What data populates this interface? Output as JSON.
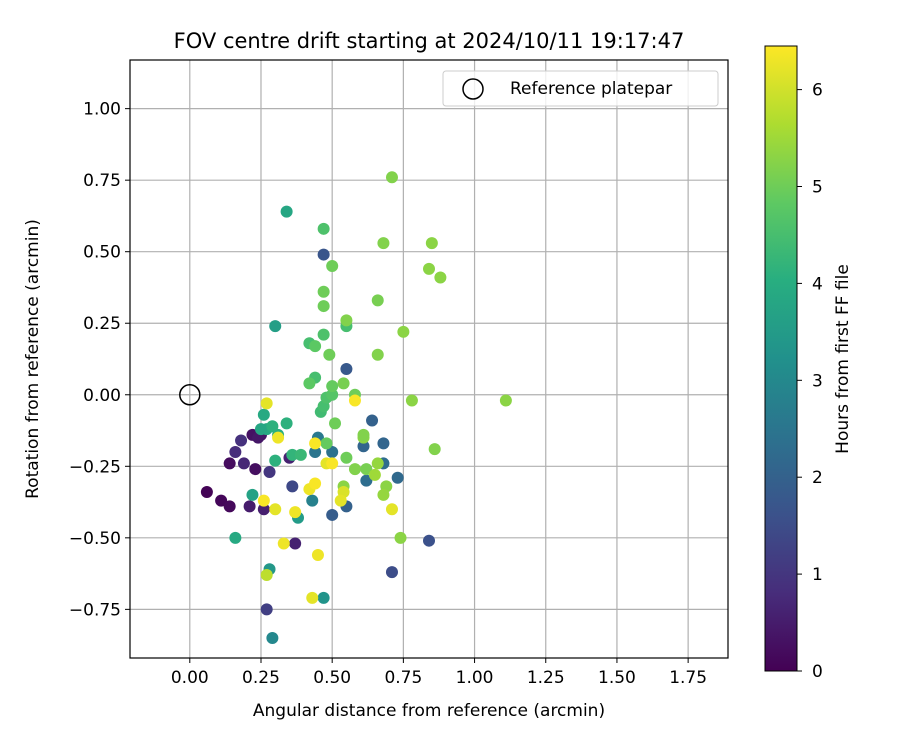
{
  "chart_data": {
    "type": "scatter",
    "title": "FOV centre drift starting at 2024/10/11 19:17:47",
    "xlabel": "Angular distance from reference (arcmin)",
    "ylabel": "Rotation from reference (arcmin)",
    "xlim": [
      -0.21,
      1.89
    ],
    "ylim": [
      -0.92,
      1.17
    ],
    "xticks": [
      "0.00",
      "0.25",
      "0.50",
      "0.75",
      "1.00",
      "1.25",
      "1.50",
      "1.75"
    ],
    "yticks": [
      "−0.75",
      "−0.50",
      "−0.25",
      "0.00",
      "0.25",
      "0.50",
      "0.75",
      "1.00"
    ],
    "xtick_values": [
      0,
      0.25,
      0.5,
      0.75,
      1.0,
      1.25,
      1.5,
      1.75
    ],
    "ytick_values": [
      -0.75,
      -0.5,
      -0.25,
      0,
      0.25,
      0.5,
      0.75,
      1.0
    ],
    "grid": true,
    "legend": {
      "position": "top-right",
      "entries": [
        "Reference platepar"
      ]
    },
    "reference_point": {
      "x": 0,
      "y": 0,
      "marker": "open-circle"
    },
    "colorbar": {
      "label": "Hours from first FF file",
      "colormap": "viridis",
      "range": [
        0,
        6.45
      ],
      "ticks": [
        "0",
        "1",
        "2",
        "3",
        "4",
        "5",
        "6"
      ],
      "tick_values": [
        0,
        1,
        2,
        3,
        4,
        5,
        6
      ]
    },
    "points": [
      {
        "x": 0.06,
        "y": -0.34,
        "c": 0.05
      },
      {
        "x": 0.11,
        "y": -0.37,
        "c": 0.1
      },
      {
        "x": 0.14,
        "y": -0.39,
        "c": 0.15
      },
      {
        "x": 0.14,
        "y": -0.24,
        "c": 0.2
      },
      {
        "x": 0.23,
        "y": -0.26,
        "c": 0.25
      },
      {
        "x": 0.22,
        "y": -0.14,
        "c": 0.3
      },
      {
        "x": 0.25,
        "y": -0.14,
        "c": 0.35
      },
      {
        "x": 0.24,
        "y": -0.15,
        "c": 0.4
      },
      {
        "x": 0.21,
        "y": -0.39,
        "c": 0.5
      },
      {
        "x": 0.26,
        "y": -0.4,
        "c": 0.55
      },
      {
        "x": 0.37,
        "y": -0.52,
        "c": 0.6
      },
      {
        "x": 0.35,
        "y": -0.22,
        "c": 0.6
      },
      {
        "x": 0.19,
        "y": -0.24,
        "c": 0.7
      },
      {
        "x": 0.16,
        "y": -0.2,
        "c": 0.8
      },
      {
        "x": 0.18,
        "y": -0.16,
        "c": 0.9
      },
      {
        "x": 0.28,
        "y": -0.27,
        "c": 1.0
      },
      {
        "x": 0.27,
        "y": -0.75,
        "c": 1.2
      },
      {
        "x": 0.36,
        "y": -0.32,
        "c": 1.4
      },
      {
        "x": 0.71,
        "y": -0.62,
        "c": 1.5
      },
      {
        "x": 0.84,
        "y": -0.51,
        "c": 1.6
      },
      {
        "x": 0.47,
        "y": 0.49,
        "c": 1.7
      },
      {
        "x": 0.55,
        "y": 0.09,
        "c": 1.8
      },
      {
        "x": 0.5,
        "y": -0.42,
        "c": 1.9
      },
      {
        "x": 0.55,
        "y": -0.39,
        "c": 2.0
      },
      {
        "x": 0.64,
        "y": -0.09,
        "c": 2.0
      },
      {
        "x": 0.61,
        "y": -0.18,
        "c": 2.1
      },
      {
        "x": 0.68,
        "y": -0.17,
        "c": 2.1
      },
      {
        "x": 0.73,
        "y": -0.29,
        "c": 2.2
      },
      {
        "x": 0.68,
        "y": -0.24,
        "c": 2.3
      },
      {
        "x": 0.62,
        "y": -0.3,
        "c": 2.3
      },
      {
        "x": 0.5,
        "y": -0.2,
        "c": 2.4
      },
      {
        "x": 0.44,
        "y": -0.2,
        "c": 2.5
      },
      {
        "x": 0.45,
        "y": -0.15,
        "c": 2.6
      },
      {
        "x": 0.43,
        "y": -0.37,
        "c": 2.8
      },
      {
        "x": 0.29,
        "y": -0.85,
        "c": 3.0
      },
      {
        "x": 0.47,
        "y": -0.71,
        "c": 3.3
      },
      {
        "x": 0.28,
        "y": -0.61,
        "c": 3.4
      },
      {
        "x": 0.38,
        "y": -0.43,
        "c": 3.5
      },
      {
        "x": 0.3,
        "y": 0.24,
        "c": 3.6
      },
      {
        "x": 0.34,
        "y": 0.64,
        "c": 3.8
      },
      {
        "x": 0.27,
        "y": -0.12,
        "c": 3.9
      },
      {
        "x": 0.25,
        "y": -0.12,
        "c": 3.8
      },
      {
        "x": 0.26,
        "y": -0.07,
        "c": 3.9
      },
      {
        "x": 0.31,
        "y": -0.14,
        "c": 4.0
      },
      {
        "x": 0.29,
        "y": -0.11,
        "c": 4.1
      },
      {
        "x": 0.22,
        "y": -0.35,
        "c": 3.7
      },
      {
        "x": 0.16,
        "y": -0.5,
        "c": 3.9
      },
      {
        "x": 0.3,
        "y": -0.23,
        "c": 4.1
      },
      {
        "x": 0.34,
        "y": -0.1,
        "c": 4.1
      },
      {
        "x": 0.36,
        "y": -0.21,
        "c": 4.2
      },
      {
        "x": 0.39,
        "y": -0.21,
        "c": 4.3
      },
      {
        "x": 0.46,
        "y": -0.06,
        "c": 4.4
      },
      {
        "x": 0.47,
        "y": -0.04,
        "c": 4.5
      },
      {
        "x": 0.48,
        "y": -0.01,
        "c": 4.6
      },
      {
        "x": 0.5,
        "y": 0.0,
        "c": 4.7
      },
      {
        "x": 0.44,
        "y": 0.06,
        "c": 4.5
      },
      {
        "x": 0.42,
        "y": 0.04,
        "c": 4.8
      },
      {
        "x": 0.42,
        "y": 0.18,
        "c": 4.5
      },
      {
        "x": 0.44,
        "y": 0.17,
        "c": 4.8
      },
      {
        "x": 0.47,
        "y": 0.21,
        "c": 4.6
      },
      {
        "x": 0.47,
        "y": 0.58,
        "c": 4.6
      },
      {
        "x": 0.55,
        "y": 0.24,
        "c": 4.5
      },
      {
        "x": 0.47,
        "y": 0.31,
        "c": 5.0
      },
      {
        "x": 0.47,
        "y": 0.36,
        "c": 5.0
      },
      {
        "x": 0.5,
        "y": 0.45,
        "c": 5.0
      },
      {
        "x": 0.49,
        "y": 0.14,
        "c": 5.0
      },
      {
        "x": 0.5,
        "y": 0.03,
        "c": 4.9
      },
      {
        "x": 0.54,
        "y": 0.04,
        "c": 5.1
      },
      {
        "x": 0.55,
        "y": 0.26,
        "c": 5.2
      },
      {
        "x": 0.58,
        "y": 0.0,
        "c": 5.0
      },
      {
        "x": 0.51,
        "y": -0.1,
        "c": 5.0
      },
      {
        "x": 0.48,
        "y": -0.17,
        "c": 4.9
      },
      {
        "x": 0.55,
        "y": -0.22,
        "c": 5.0
      },
      {
        "x": 0.54,
        "y": -0.32,
        "c": 5.3
      },
      {
        "x": 0.58,
        "y": -0.26,
        "c": 5.2
      },
      {
        "x": 0.61,
        "y": -0.15,
        "c": 5.3
      },
      {
        "x": 0.61,
        "y": -0.14,
        "c": 5.2
      },
      {
        "x": 0.62,
        "y": -0.26,
        "c": 5.1
      },
      {
        "x": 0.66,
        "y": -0.24,
        "c": 5.4
      },
      {
        "x": 0.65,
        "y": -0.28,
        "c": 5.5
      },
      {
        "x": 0.69,
        "y": -0.32,
        "c": 5.3
      },
      {
        "x": 0.68,
        "y": -0.35,
        "c": 5.4
      },
      {
        "x": 0.74,
        "y": -0.5,
        "c": 5.3
      },
      {
        "x": 0.86,
        "y": -0.19,
        "c": 5.2
      },
      {
        "x": 0.78,
        "y": -0.02,
        "c": 5.3
      },
      {
        "x": 0.66,
        "y": 0.14,
        "c": 5.2
      },
      {
        "x": 0.75,
        "y": 0.22,
        "c": 5.3
      },
      {
        "x": 0.66,
        "y": 0.33,
        "c": 5.1
      },
      {
        "x": 0.68,
        "y": 0.53,
        "c": 5.2
      },
      {
        "x": 0.71,
        "y": 0.76,
        "c": 5.2
      },
      {
        "x": 0.85,
        "y": 0.53,
        "c": 5.3
      },
      {
        "x": 0.84,
        "y": 0.44,
        "c": 5.3
      },
      {
        "x": 0.88,
        "y": 0.41,
        "c": 5.3
      },
      {
        "x": 1.11,
        "y": -0.02,
        "c": 5.3
      },
      {
        "x": 0.27,
        "y": -0.63,
        "c": 5.8
      },
      {
        "x": 0.27,
        "y": -0.03,
        "c": 6.2
      },
      {
        "x": 0.31,
        "y": -0.15,
        "c": 6.3
      },
      {
        "x": 0.26,
        "y": -0.37,
        "c": 6.4
      },
      {
        "x": 0.3,
        "y": -0.4,
        "c": 6.2
      },
      {
        "x": 0.33,
        "y": -0.52,
        "c": 6.3
      },
      {
        "x": 0.37,
        "y": -0.41,
        "c": 6.3
      },
      {
        "x": 0.42,
        "y": -0.33,
        "c": 6.3
      },
      {
        "x": 0.44,
        "y": -0.31,
        "c": 6.4
      },
      {
        "x": 0.43,
        "y": -0.71,
        "c": 6.2
      },
      {
        "x": 0.45,
        "y": -0.56,
        "c": 6.3
      },
      {
        "x": 0.44,
        "y": -0.17,
        "c": 6.4
      },
      {
        "x": 0.48,
        "y": -0.24,
        "c": 6.2
      },
      {
        "x": 0.5,
        "y": -0.24,
        "c": 6.4
      },
      {
        "x": 0.54,
        "y": -0.34,
        "c": 6.1
      },
      {
        "x": 0.53,
        "y": -0.37,
        "c": 6.2
      },
      {
        "x": 0.58,
        "y": -0.02,
        "c": 6.4
      },
      {
        "x": 0.71,
        "y": -0.4,
        "c": 6.2
      }
    ]
  }
}
